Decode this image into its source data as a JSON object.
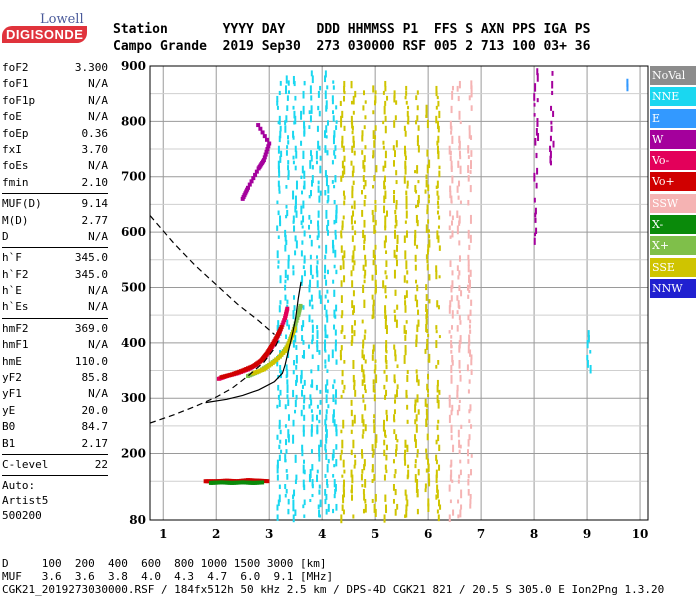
{
  "logo": {
    "brand_top": "Lowell",
    "brand_bottom": "DIGISONDE"
  },
  "header": {
    "line1": "Station       YYYY DAY    DDD HHMMSS P1  FFS S AXN PPS IGA PS",
    "line2": "Campo Grande  2019 Sep30  273 030000 RSF 005 2 713 100 03+ 36"
  },
  "params": [
    {
      "label": "foF2",
      "value": "3.300"
    },
    {
      "label": "foF1",
      "value": "N/A"
    },
    {
      "label": "foF1p",
      "value": "N/A"
    },
    {
      "label": "foE",
      "value": "N/A"
    },
    {
      "label": "foEp",
      "value": "0.36"
    },
    {
      "label": "fxI",
      "value": "3.70"
    },
    {
      "label": "foEs",
      "value": "N/A"
    },
    {
      "label": "fmin",
      "value": "2.10"
    },
    {
      "label": "MUF(D)",
      "value": "9.14",
      "divider": true
    },
    {
      "label": "M(D)",
      "value": "2.77"
    },
    {
      "label": "D",
      "value": "N/A"
    },
    {
      "label": "h`F",
      "value": "345.0",
      "divider": true
    },
    {
      "label": "h`F2",
      "value": "345.0"
    },
    {
      "label": "h`E",
      "value": "N/A"
    },
    {
      "label": "h`Es",
      "value": "N/A"
    },
    {
      "label": "hmF2",
      "value": "369.0",
      "divider": true
    },
    {
      "label": "hmF1",
      "value": "N/A"
    },
    {
      "label": "hmE",
      "value": "110.0"
    },
    {
      "label": "yF2",
      "value": "85.8"
    },
    {
      "label": "yF1",
      "value": "N/A"
    },
    {
      "label": "yE",
      "value": "20.0"
    },
    {
      "label": "B0",
      "value": "84.7"
    },
    {
      "label": "B1",
      "value": "2.17"
    },
    {
      "label": "C-level",
      "value": "22",
      "divider": true
    }
  ],
  "autoscaler": {
    "line1": "Auto:",
    "line2": "Artist5",
    "line3": "500200"
  },
  "legend": [
    {
      "label": "NoVal",
      "color": "#8c8c8c"
    },
    {
      "label": "NNE",
      "color": "#1ad7f0"
    },
    {
      "label": "E",
      "color": "#3399ff"
    },
    {
      "label": "W",
      "color": "#a4009c"
    },
    {
      "label": "Vo-",
      "color": "#e3005a"
    },
    {
      "label": "Vo+",
      "color": "#d00000"
    },
    {
      "label": "SSW",
      "color": "#f5b3b3"
    },
    {
      "label": "X-",
      "color": "#0a8a0a"
    },
    {
      "label": "X+",
      "color": "#7fbf4a"
    },
    {
      "label": "SSE",
      "color": "#cfc400"
    },
    {
      "label": "NNW",
      "color": "#2020d0"
    }
  ],
  "footer": {
    "d_row": "D     100  200  400  600  800 1000 1500 3000 [km]",
    "muf_row": "MUF   3.6  3.6  3.8  4.0  4.3  4.7  6.0  9.1 [MHz]",
    "info": "CGK21_2019273030000.RSF / 184fx512h 50 kHz 2.5 km / DPS-4D CGK21 821 / 20.5 S 305.0 E Ion2Png 1.3.20"
  },
  "chart_data": {
    "type": "scatter",
    "x_ticks": [
      1,
      2,
      3,
      4,
      5,
      6,
      7,
      8,
      9,
      10
    ],
    "y_ticks": [
      80,
      200,
      300,
      400,
      500,
      600,
      700,
      800,
      900
    ],
    "xlim": [
      0.75,
      10.15
    ],
    "ylim": [
      80,
      900
    ],
    "xlabel": "",
    "ylabel": "",
    "grid": true,
    "traces": [
      {
        "name": "F2 trace O (Vo-)",
        "color": "#e3005a",
        "points": [
          [
            2.05,
            335
          ],
          [
            2.2,
            340
          ],
          [
            2.4,
            345
          ],
          [
            2.6,
            352
          ],
          [
            2.75,
            360
          ],
          [
            2.9,
            372
          ],
          [
            3.0,
            385
          ],
          [
            3.1,
            400
          ],
          [
            3.2,
            420
          ],
          [
            3.3,
            445
          ],
          [
            3.35,
            465
          ]
        ]
      },
      {
        "name": "F2 trace O (Vo+)",
        "color": "#d00000",
        "points": [
          [
            2.1,
            338
          ],
          [
            2.3,
            343
          ],
          [
            2.5,
            350
          ],
          [
            2.7,
            358
          ],
          [
            2.85,
            368
          ],
          [
            2.95,
            380
          ],
          [
            3.05,
            395
          ],
          [
            3.15,
            412
          ],
          [
            3.25,
            432
          ]
        ]
      },
      {
        "name": "F2 trace X (X+)",
        "color": "#7fbf4a",
        "points": [
          [
            2.6,
            340
          ],
          [
            2.8,
            348
          ],
          [
            3.0,
            360
          ],
          [
            3.2,
            375
          ],
          [
            3.35,
            395
          ],
          [
            3.45,
            420
          ],
          [
            3.55,
            450
          ],
          [
            3.6,
            470
          ]
        ]
      },
      {
        "name": "F2 trace (SSE)",
        "color": "#cfc400",
        "points": [
          [
            2.7,
            345
          ],
          [
            2.9,
            352
          ],
          [
            3.1,
            366
          ],
          [
            3.3,
            385
          ],
          [
            3.4,
            405
          ],
          [
            3.5,
            430
          ]
        ]
      },
      {
        "name": "Es trace",
        "color": "#d00000",
        "points": [
          [
            1.8,
            150
          ],
          [
            2.0,
            150
          ],
          [
            2.2,
            151
          ],
          [
            2.4,
            150
          ],
          [
            2.6,
            152
          ],
          [
            2.8,
            151
          ],
          [
            3.0,
            150
          ]
        ]
      },
      {
        "name": "Es trace X",
        "color": "#0a8a0a",
        "points": [
          [
            1.9,
            147
          ],
          [
            2.1,
            148
          ],
          [
            2.3,
            147
          ],
          [
            2.5,
            148
          ],
          [
            2.7,
            147
          ],
          [
            2.9,
            148
          ]
        ]
      },
      {
        "name": "F2 high (W)",
        "color": "#a4009c",
        "points": [
          [
            2.5,
            660
          ],
          [
            2.6,
            680
          ],
          [
            2.8,
            715
          ],
          [
            2.9,
            730
          ],
          [
            3.0,
            760
          ],
          [
            2.75,
            800
          ]
        ]
      }
    ],
    "columns": [
      {
        "x": 3.15,
        "color": "#1ad7f0",
        "from": 90,
        "to": 880
      },
      {
        "x": 3.3,
        "color": "#1ad7f0",
        "from": 100,
        "to": 890
      },
      {
        "x": 3.45,
        "color": "#1ad7f0",
        "from": 90,
        "to": 900
      },
      {
        "x": 3.6,
        "color": "#1ad7f0",
        "from": 90,
        "to": 890
      },
      {
        "x": 3.75,
        "color": "#1ad7f0",
        "from": 100,
        "to": 900
      },
      {
        "x": 3.9,
        "color": "#1ad7f0",
        "from": 90,
        "to": 880
      },
      {
        "x": 4.05,
        "color": "#1ad7f0",
        "from": 100,
        "to": 900
      },
      {
        "x": 4.2,
        "color": "#1ad7f0",
        "from": 100,
        "to": 880
      },
      {
        "x": 4.35,
        "color": "#cfc400",
        "from": 90,
        "to": 880
      },
      {
        "x": 4.55,
        "color": "#cfc400",
        "from": 90,
        "to": 880
      },
      {
        "x": 4.75,
        "color": "#cfc400",
        "from": 100,
        "to": 860
      },
      {
        "x": 4.95,
        "color": "#cfc400",
        "from": 100,
        "to": 870
      },
      {
        "x": 5.15,
        "color": "#cfc400",
        "from": 90,
        "to": 880
      },
      {
        "x": 5.35,
        "color": "#cfc400",
        "from": 100,
        "to": 860
      },
      {
        "x": 5.55,
        "color": "#cfc400",
        "from": 90,
        "to": 870
      },
      {
        "x": 5.75,
        "color": "#cfc400",
        "from": 100,
        "to": 860
      },
      {
        "x": 5.95,
        "color": "#cfc400",
        "from": 110,
        "to": 850
      },
      {
        "x": 6.15,
        "color": "#cfc400",
        "from": 90,
        "to": 880
      },
      {
        "x": 6.4,
        "color": "#f5b3b3",
        "from": 90,
        "to": 880
      },
      {
        "x": 6.55,
        "color": "#f5b3b3",
        "from": 90,
        "to": 880
      },
      {
        "x": 6.75,
        "color": "#f5b3b3",
        "from": 100,
        "to": 880
      },
      {
        "x": 8.0,
        "color": "#a4009c",
        "from": 590,
        "to": 900
      },
      {
        "x": 8.3,
        "color": "#a4009c",
        "from": 720,
        "to": 900
      },
      {
        "x": 9.0,
        "color": "#1ad7f0",
        "from": 360,
        "to": 430
      },
      {
        "x": 9.7,
        "color": "#3399ff",
        "from": 850,
        "to": 890
      }
    ],
    "profile": [
      [
        3.3,
        360
      ],
      [
        3.25,
        345
      ],
      [
        3.1,
        330
      ],
      [
        2.8,
        315
      ],
      [
        2.5,
        305
      ],
      [
        2.2,
        298
      ],
      [
        1.8,
        292
      ]
    ],
    "profile_top": [
      [
        3.3,
        360
      ],
      [
        3.35,
        380
      ],
      [
        3.4,
        400
      ],
      [
        3.45,
        420
      ],
      [
        3.5,
        445
      ],
      [
        3.55,
        480
      ],
      [
        3.6,
        510
      ]
    ],
    "model_lower": [
      [
        0.75,
        255
      ],
      [
        1.2,
        270
      ],
      [
        1.6,
        285
      ],
      [
        2.0,
        302
      ],
      [
        2.3,
        318
      ],
      [
        2.6,
        340
      ],
      [
        2.9,
        365
      ],
      [
        3.1,
        390
      ],
      [
        3.2,
        410
      ]
    ],
    "model_upper": [
      [
        0.75,
        630
      ],
      [
        1.2,
        580
      ],
      [
        1.6,
        540
      ],
      [
        2.0,
        505
      ],
      [
        2.4,
        470
      ],
      [
        2.8,
        440
      ],
      [
        3.1,
        415
      ]
    ]
  }
}
